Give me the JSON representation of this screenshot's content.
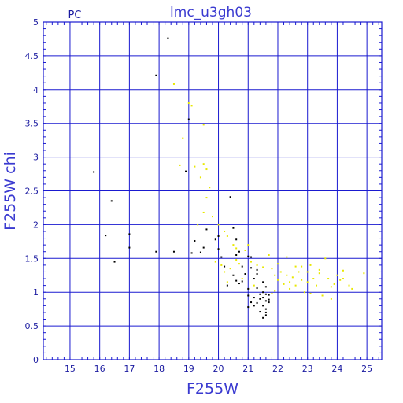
{
  "chart_data": {
    "type": "scatter",
    "title": "lmc_u3gh03",
    "corner_label": "PC",
    "xlabel": "F255W",
    "ylabel": "F255W  chi",
    "xlim": [
      14.1,
      25.5
    ],
    "ylim": [
      0,
      5
    ],
    "xticks": [
      15,
      16,
      17,
      18,
      19,
      20,
      21,
      22,
      23,
      24,
      25
    ],
    "yticks": [
      0,
      0.5,
      1,
      1.5,
      2,
      2.5,
      3,
      3.5,
      4,
      4.5,
      5
    ],
    "ytick_labels": [
      "0",
      "0.5",
      "1",
      "1.5",
      "2",
      "2.5",
      "3",
      "3.5",
      "4",
      "4.5",
      "5"
    ],
    "grid": true,
    "colors": {
      "grid": "#1a1ad0",
      "frame": "#1a1ad0",
      "text": "#1a1aa0",
      "series_black": "#000000",
      "series_yellow": "#e8e800"
    },
    "series": [
      {
        "color": "#000000",
        "points": [
          [
            18.3,
            4.76
          ],
          [
            17.9,
            4.21
          ],
          [
            19.0,
            3.56
          ],
          [
            15.8,
            2.78
          ],
          [
            18.9,
            2.79
          ],
          [
            16.4,
            2.35
          ],
          [
            16.2,
            1.84
          ],
          [
            17.0,
            1.86
          ],
          [
            17.0,
            1.66
          ],
          [
            16.5,
            1.45
          ],
          [
            17.9,
            1.6
          ],
          [
            18.5,
            1.6
          ],
          [
            19.1,
            1.58
          ],
          [
            19.2,
            1.76
          ],
          [
            19.4,
            1.59
          ],
          [
            19.5,
            1.66
          ],
          [
            19.6,
            1.93
          ],
          [
            19.9,
            1.78
          ],
          [
            20.0,
            1.83
          ],
          [
            20.0,
            1.64
          ],
          [
            20.1,
            1.52
          ],
          [
            20.2,
            1.38
          ],
          [
            20.4,
            2.41
          ],
          [
            20.5,
            1.95
          ],
          [
            20.6,
            1.78
          ],
          [
            20.6,
            1.55
          ],
          [
            20.7,
            1.6
          ],
          [
            20.8,
            1.38
          ],
          [
            20.5,
            1.25
          ],
          [
            20.3,
            1.1
          ],
          [
            20.6,
            1.17
          ],
          [
            20.7,
            1.13
          ],
          [
            20.8,
            1.16
          ],
          [
            20.9,
            1.27
          ],
          [
            21.0,
            1.05
          ],
          [
            21.0,
            1.53
          ],
          [
            21.1,
            1.52
          ],
          [
            21.1,
            1.36
          ],
          [
            21.2,
            1.2
          ],
          [
            21.3,
            1.27
          ],
          [
            21.3,
            1.06
          ],
          [
            21.0,
            0.95
          ],
          [
            21.1,
            0.85
          ],
          [
            21.2,
            0.8
          ],
          [
            21.3,
            0.84
          ],
          [
            21.4,
            0.97
          ],
          [
            21.4,
            0.9
          ],
          [
            21.5,
            1.15
          ],
          [
            21.5,
            1.0
          ],
          [
            21.5,
            0.92
          ],
          [
            21.5,
            0.8
          ],
          [
            21.6,
            1.08
          ],
          [
            21.6,
            0.97
          ],
          [
            21.6,
            0.87
          ],
          [
            21.6,
            0.75
          ],
          [
            21.7,
            0.96
          ],
          [
            21.7,
            0.85
          ],
          [
            21.5,
            0.62
          ],
          [
            21.6,
            0.66
          ],
          [
            21.6,
            0.7
          ],
          [
            21.7,
            0.89
          ],
          [
            21.4,
            0.71
          ],
          [
            21.3,
            1.33
          ],
          [
            21.0,
            0.78
          ],
          [
            21.2,
            0.92
          ]
        ]
      },
      {
        "color": "#e8e800",
        "points": [
          [
            18.5,
            4.08
          ],
          [
            19.1,
            3.76
          ],
          [
            19.0,
            3.8
          ],
          [
            19.5,
            3.48
          ],
          [
            18.8,
            3.28
          ],
          [
            18.7,
            2.88
          ],
          [
            19.2,
            2.86
          ],
          [
            19.5,
            2.9
          ],
          [
            19.6,
            2.82
          ],
          [
            19.4,
            2.7
          ],
          [
            19.7,
            2.55
          ],
          [
            19.6,
            2.4
          ],
          [
            19.5,
            2.18
          ],
          [
            19.3,
            2.0
          ],
          [
            19.8,
            2.12
          ],
          [
            20.0,
            2.0
          ],
          [
            20.2,
            1.9
          ],
          [
            20.3,
            1.83
          ],
          [
            20.5,
            1.7
          ],
          [
            20.6,
            1.65
          ],
          [
            19.9,
            1.45
          ],
          [
            20.1,
            1.4
          ],
          [
            20.2,
            1.3
          ],
          [
            20.4,
            1.35
          ],
          [
            20.6,
            1.48
          ],
          [
            20.7,
            1.42
          ],
          [
            20.9,
            1.62
          ],
          [
            21.0,
            1.7
          ],
          [
            21.1,
            1.45
          ],
          [
            21.3,
            1.4
          ],
          [
            21.5,
            1.37
          ],
          [
            21.7,
            1.55
          ],
          [
            21.8,
            1.35
          ],
          [
            21.9,
            1.25
          ],
          [
            22.0,
            1.18
          ],
          [
            22.1,
            1.3
          ],
          [
            22.2,
            1.12
          ],
          [
            22.3,
            1.25
          ],
          [
            22.4,
            1.05
          ],
          [
            22.5,
            1.22
          ],
          [
            22.6,
            1.1
          ],
          [
            22.7,
            1.3
          ],
          [
            22.8,
            1.18
          ],
          [
            22.9,
            1.0
          ],
          [
            23.0,
            1.15
          ],
          [
            23.1,
            1.4
          ],
          [
            23.2,
            1.2
          ],
          [
            23.3,
            1.1
          ],
          [
            23.4,
            1.28
          ],
          [
            23.5,
            0.95
          ],
          [
            23.6,
            1.5
          ],
          [
            23.7,
            1.2
          ],
          [
            23.8,
            1.08
          ],
          [
            23.9,
            1.12
          ],
          [
            24.0,
            1.25
          ],
          [
            24.1,
            1.18
          ],
          [
            24.2,
            1.32
          ],
          [
            24.4,
            1.1
          ],
          [
            24.5,
            1.05
          ],
          [
            24.9,
            1.28
          ],
          [
            22.3,
            1.52
          ],
          [
            22.6,
            1.38
          ],
          [
            23.8,
            0.9
          ],
          [
            23.1,
            0.98
          ],
          [
            20.8,
            1.2
          ],
          [
            21.9,
            1.02
          ],
          [
            22.0,
            1.42
          ],
          [
            22.8,
            1.38
          ],
          [
            23.4,
            1.33
          ],
          [
            24.2,
            1.2
          ],
          [
            20.3,
            1.15
          ],
          [
            21.2,
            1.1
          ],
          [
            21.8,
            0.98
          ],
          [
            22.4,
            1.15
          ],
          [
            23.0,
            1.3
          ]
        ]
      }
    ]
  }
}
